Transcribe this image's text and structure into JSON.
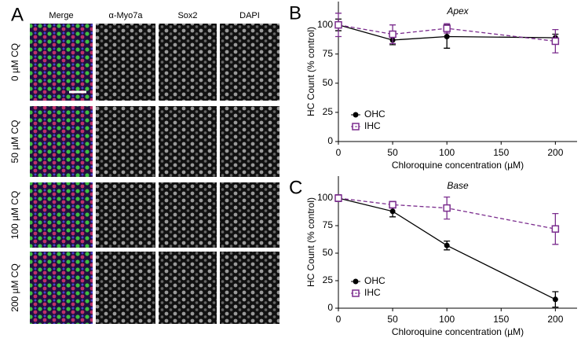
{
  "panel_a": {
    "panel_label": "A",
    "columns": [
      "Merge",
      "α-Myo7a",
      "Sox2",
      "DAPI"
    ],
    "rows": [
      "0 µM CQ",
      "50 µM CQ",
      "100 µM CQ",
      "200 µM CQ"
    ]
  },
  "chart_data": [
    {
      "type": "line",
      "panel_label": "B",
      "title": "Apex",
      "x_label": "Chloroquine concentration (µM)",
      "y_label": "HC Count (% control)",
      "x": [
        0,
        50,
        100,
        200
      ],
      "series": [
        {
          "name": "OHC",
          "color": "#000000",
          "marker": "circle",
          "dash": false,
          "values": [
            100,
            87,
            90,
            89
          ],
          "errors": [
            5,
            4,
            10,
            3
          ]
        },
        {
          "name": "IHC",
          "color": "#7b2d8e",
          "marker": "square",
          "dash": true,
          "values": [
            100,
            92,
            97,
            86
          ],
          "errors": [
            10,
            8,
            4,
            10
          ]
        }
      ],
      "xlim": [
        0,
        220
      ],
      "ylim": [
        0,
        120
      ],
      "xticks": [
        0,
        50,
        100,
        150,
        200
      ],
      "yticks": [
        0,
        25,
        50,
        75,
        100
      ],
      "legend": "lower left"
    },
    {
      "type": "line",
      "panel_label": "C",
      "title": "Base",
      "x_label": "Chloroquine concentration (µM)",
      "y_label": "HC Count (% control)",
      "x": [
        0,
        50,
        100,
        200
      ],
      "series": [
        {
          "name": "OHC",
          "color": "#000000",
          "marker": "circle",
          "dash": false,
          "values": [
            100,
            88,
            57,
            8
          ],
          "errors": [
            3,
            5,
            4,
            7
          ]
        },
        {
          "name": "IHC",
          "color": "#7b2d8e",
          "marker": "square",
          "dash": true,
          "values": [
            100,
            94,
            91,
            72
          ],
          "errors": [
            3,
            3,
            10,
            14
          ]
        }
      ],
      "xlim": [
        0,
        220
      ],
      "ylim": [
        0,
        120
      ],
      "xticks": [
        0,
        50,
        100,
        150,
        200
      ],
      "yticks": [
        0,
        25,
        50,
        75,
        100
      ],
      "legend": "lower left"
    }
  ]
}
